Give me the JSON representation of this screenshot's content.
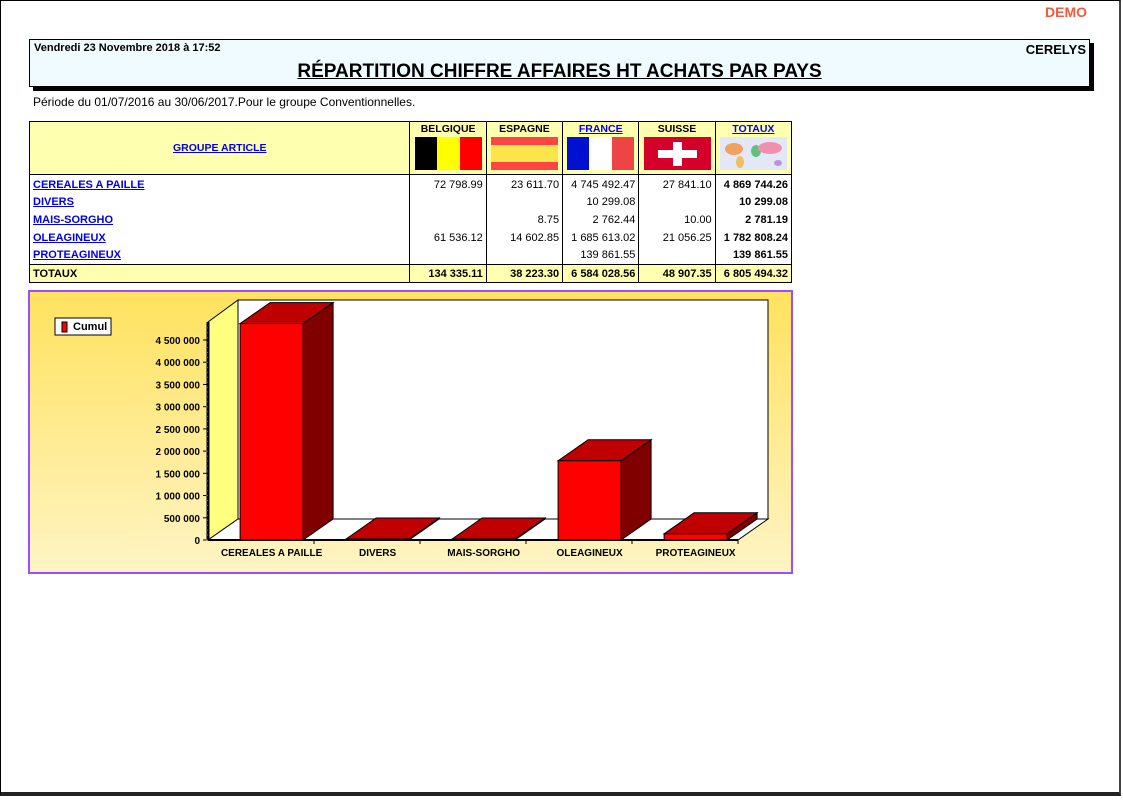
{
  "watermark": "DEMO",
  "header": {
    "date": "Vendredi 23 Novembre 2018 à 17:52",
    "company": "CERELYS",
    "title": "RÉPARTITION CHIFFRE AFFAIRES HT ACHATS PAR PAYS"
  },
  "period": "Période du 01/07/2016 au 30/06/2017.Pour le groupe Conventionnelles.",
  "table": {
    "group_header": "GROUPE ARTICLE",
    "columns": [
      {
        "label": "BELGIQUE",
        "flag": "belgium-flag",
        "link": false
      },
      {
        "label": "ESPAGNE",
        "flag": "spain-flag",
        "link": false
      },
      {
        "label": "FRANCE",
        "flag": "france-flag",
        "link": true
      },
      {
        "label": "SUISSE",
        "flag": "switzerland-flag",
        "link": false
      },
      {
        "label": "TOTAUX",
        "flag": "world-map",
        "link": true
      }
    ],
    "rows": [
      {
        "label": "CEREALES A PAILLE",
        "values": [
          "72 798.99",
          "23 611.70",
          "4 745 492.47",
          "27 841.10",
          "4 869 744.26"
        ]
      },
      {
        "label": "DIVERS",
        "values": [
          "",
          "",
          "10 299.08",
          "",
          "10 299.08"
        ]
      },
      {
        "label": "MAIS-SORGHO",
        "values": [
          "",
          "8.75",
          "2 762.44",
          "10.00",
          "2 781.19"
        ]
      },
      {
        "label": "OLEAGINEUX",
        "values": [
          "61 536.12",
          "14 602.85",
          "1 685 613.02",
          "21 056.25",
          "1 782 808.24"
        ]
      },
      {
        "label": "PROTEAGINEUX",
        "values": [
          "",
          "",
          "139 861.55",
          "",
          "139 861.55"
        ]
      }
    ],
    "totals": {
      "label": "TOTAUX",
      "values": [
        "134 335.11",
        "38 223.30",
        "6 584 028.56",
        "48 907.35",
        "6 805 494.32"
      ]
    }
  },
  "chart_data": {
    "type": "bar",
    "style": "3d",
    "legend": "top-left",
    "categories": [
      "CEREALES A PAILLE",
      "DIVERS",
      "MAIS-SORGHO",
      "OLEAGINEUX",
      "PROTEAGINEUX"
    ],
    "series": [
      {
        "name": "Cumul",
        "values": [
          4869744.26,
          10299.08,
          2781.19,
          1782808.24,
          139861.55
        ],
        "color": "#ff0000"
      }
    ],
    "yticks": [
      0,
      500000,
      1000000,
      1500000,
      2000000,
      2500000,
      3000000,
      3500000,
      4000000,
      4500000
    ],
    "ytick_labels": [
      "0",
      "500 000",
      "1 000 000",
      "1 500 000",
      "2 000 000",
      "2 500 000",
      "3 000 000",
      "3 500 000",
      "4 000 000",
      "4 500 000"
    ]
  }
}
